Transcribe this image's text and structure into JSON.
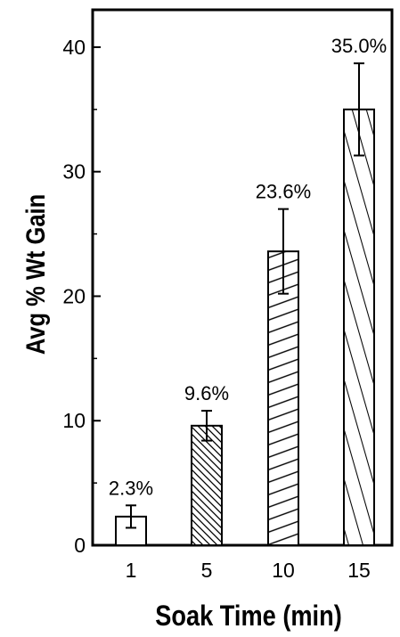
{
  "chart_data": {
    "type": "bar",
    "title": "",
    "xlabel": "Soak Time (min)",
    "ylabel": "Avg % Wt Gain",
    "categories": [
      "1",
      "5",
      "10",
      "15"
    ],
    "values": [
      2.3,
      9.6,
      23.6,
      35.0
    ],
    "errors": [
      0.9,
      1.2,
      3.4,
      3.7
    ],
    "data_labels": [
      "2.3%",
      "9.6%",
      "23.6%",
      "35.0%"
    ],
    "bar_patterns": [
      "none",
      "dense-diagonal",
      "medium-diagonal",
      "sparse-diagonal"
    ],
    "ylim": [
      0,
      43
    ],
    "yticks": [
      0,
      10,
      20,
      30,
      40
    ],
    "grid": false,
    "legend": "none",
    "colors": {
      "bar_fill": "#ffffff",
      "stroke": "#000000"
    }
  }
}
